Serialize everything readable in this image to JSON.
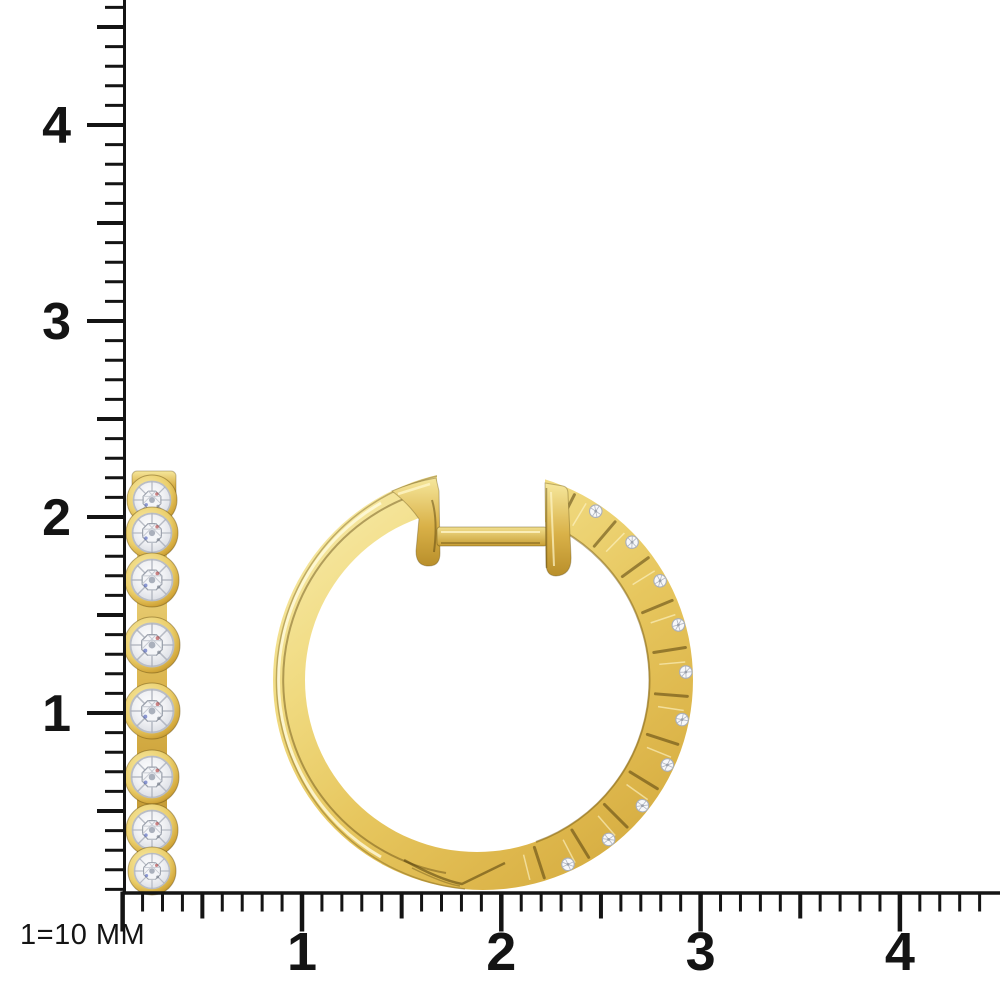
{
  "scale_note": "1=10 MM",
  "rulers": {
    "vertical": {
      "labels": [
        "4",
        "3",
        "2",
        "1"
      ],
      "values": [
        4,
        3,
        2,
        1
      ]
    },
    "horizontal": {
      "labels": [
        "1",
        "2",
        "3",
        "4"
      ],
      "values": [
        1,
        2,
        3,
        4
      ]
    }
  },
  "scene": {
    "items": [
      {
        "name": "diamond-hoop-earring-side-view",
        "stone_count": 8
      },
      {
        "name": "diamond-hoop-earring-front-view"
      }
    ],
    "material": "yellow-gold",
    "stone": "diamond"
  },
  "colors": {
    "background": "#FFFFFF",
    "ruler": "#141414",
    "gold-light": "#F7E9A4",
    "gold-mid": "#E7C75F",
    "gold-deep": "#C69F35",
    "gold-shadow": "#8A671B",
    "diamond-light": "#FAFAFB",
    "diamond-mid": "#D9DCE3"
  }
}
